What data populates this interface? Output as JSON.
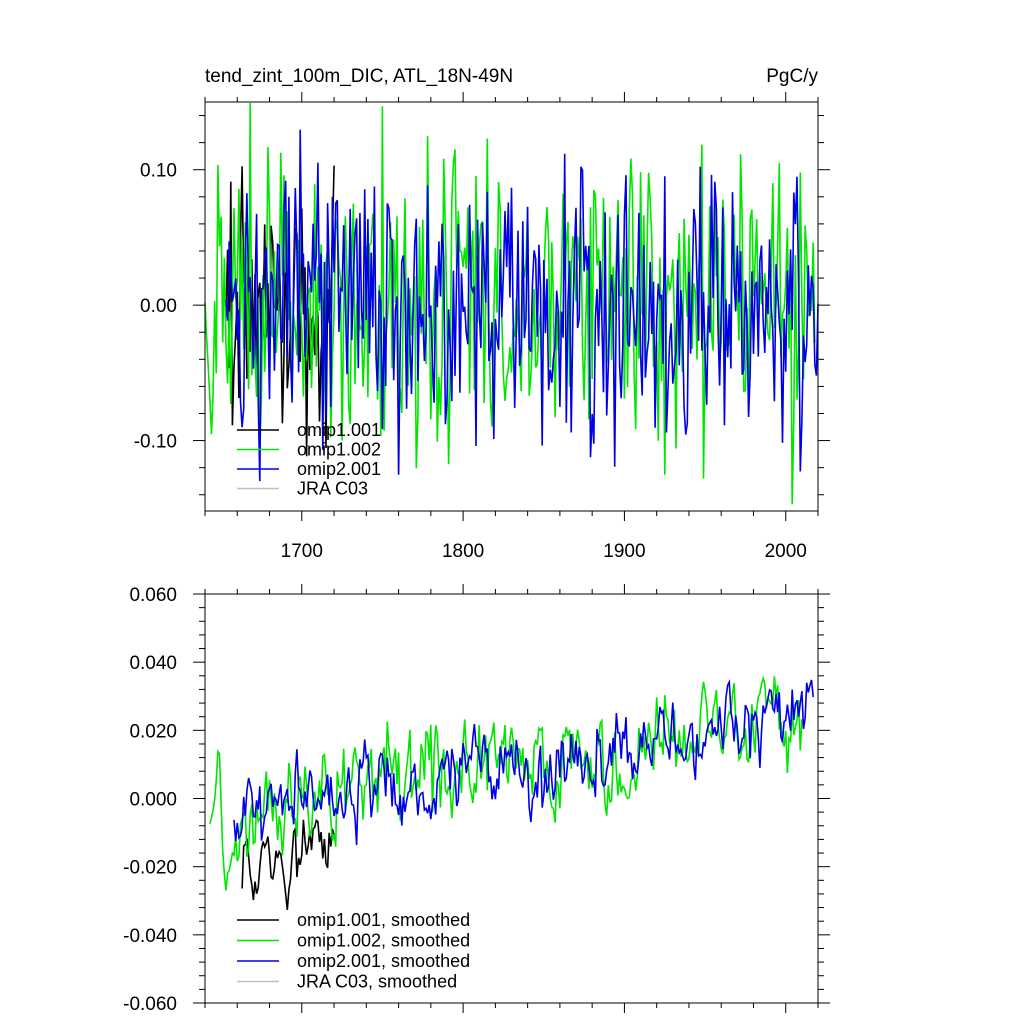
{
  "chart_data": [
    {
      "type": "line",
      "title": "tend_zint_100m_DIC, ATL_18N-49N",
      "units": "PgC/y",
      "xlim": [
        1640,
        2020
      ],
      "ylim": [
        -0.152,
        0.15
      ],
      "x_ticks": [
        1700,
        1800,
        1900,
        2000
      ],
      "x_tick_labels": [
        "1700",
        "1800",
        "1900",
        "2000"
      ],
      "y_ticks": [
        -0.1,
        0.0,
        0.1
      ],
      "y_tick_labels": [
        "-0.10",
        "0.00",
        "0.10"
      ],
      "legend_position": "lower-left",
      "series": [
        {
          "name": "omip1.001",
          "color": "#000000",
          "start": 1653,
          "end": 1720,
          "mean": 0.0,
          "trend": 0.0,
          "amp": 0.045
        },
        {
          "name": "omip1.002",
          "color": "#00e600",
          "start": 1640,
          "end": 2018,
          "mean": 0.005,
          "trend": 0.0,
          "amp": 0.055
        },
        {
          "name": "omip2.001",
          "color": "#0000e6",
          "start": 1653,
          "end": 2020,
          "mean": 0.0,
          "trend": 0.0,
          "amp": 0.05
        },
        {
          "name": "JRA C03",
          "color": "#c0c0c0",
          "start": null,
          "end": null,
          "mean": 0.0,
          "trend": 0.0,
          "amp": 0.0
        }
      ]
    },
    {
      "type": "line",
      "title": "",
      "units": "",
      "xlim": [
        1640,
        2020
      ],
      "ylim": [
        -0.06,
        0.06
      ],
      "x_ticks": [
        1700,
        1800,
        1900,
        2000
      ],
      "x_tick_labels": [
        "",
        "",
        "",
        ""
      ],
      "y_ticks": [
        -0.06,
        -0.04,
        -0.02,
        0.0,
        0.02,
        0.04,
        0.06
      ],
      "y_tick_labels": [
        "-0.060",
        "-0.040",
        "-0.020",
        "0.000",
        "0.020",
        "0.040",
        "0.060"
      ],
      "legend_position": "lower-left",
      "series": [
        {
          "name": "omip1.001, smoothed",
          "color": "#000000",
          "start": 1663,
          "end": 1720,
          "mean": -0.015,
          "trend": 0.0,
          "amp": 0.008
        },
        {
          "name": "omip1.002, smoothed",
          "color": "#00e600",
          "start": 1643,
          "end": 2010,
          "mean": -0.005,
          "trend": 8e-05,
          "amp": 0.01
        },
        {
          "name": "omip2.001, smoothed",
          "color": "#0000e6",
          "start": 1658,
          "end": 2017,
          "mean": -0.005,
          "trend": 8e-05,
          "amp": 0.008
        },
        {
          "name": "JRA C03, smoothed",
          "color": "#c0c0c0",
          "start": null,
          "end": null,
          "mean": 0.0,
          "trend": 0.0,
          "amp": 0.0
        }
      ]
    }
  ]
}
